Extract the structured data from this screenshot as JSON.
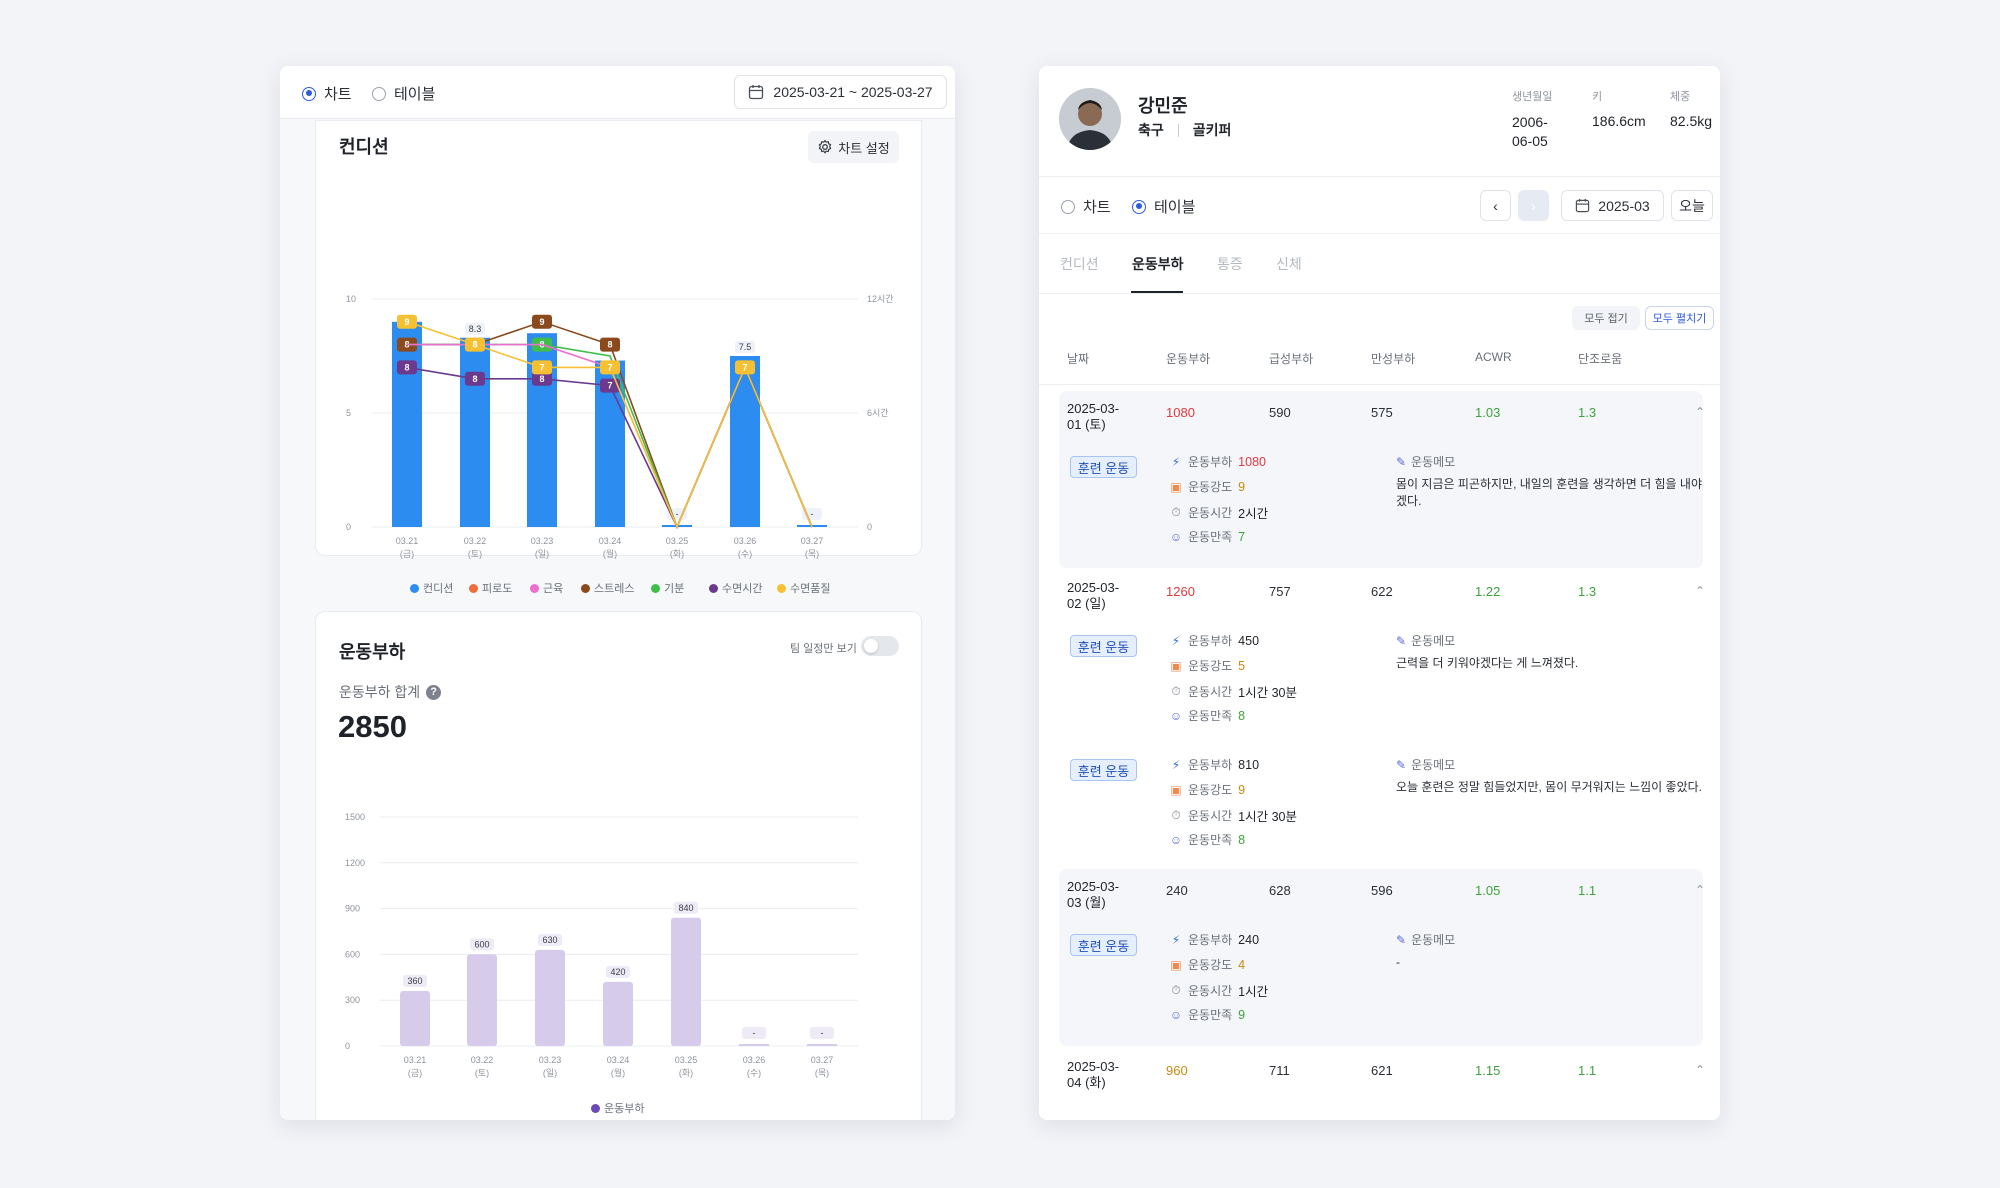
{
  "left": {
    "view_radio": {
      "chart": "차트",
      "table": "테이블"
    },
    "date_range": "2025-03-21 ~ 2025-03-27",
    "condition_card": {
      "title": "컨디션",
      "settings_label": "차트 설정",
      "legend": [
        {
          "name": "컨디션",
          "color": "#2d8cf0"
        },
        {
          "name": "피로도",
          "color": "#f26b3a"
        },
        {
          "name": "근육",
          "color": "#ec6fcf"
        },
        {
          "name": "스트레스",
          "color": "#8a4a1d"
        },
        {
          "name": "기분",
          "color": "#3fbf4a"
        },
        {
          "name": "수면시간",
          "color": "#6b3a8f"
        },
        {
          "name": "수면품질",
          "color": "#f5c133"
        }
      ]
    },
    "load_card": {
      "title": "운동부하",
      "team_toggle_label": "팀 일정만 보기",
      "total_label": "운동부하 합계",
      "total_value": "2850",
      "legend": [
        {
          "name": "운동부하",
          "color": "#6b48b8"
        }
      ]
    }
  },
  "chart_data": [
    {
      "type": "bar",
      "categories": [
        "03.21\n(금)",
        "03.22\n(토)",
        "03.23\n(일)",
        "03.24\n(월)",
        "03.25\n(화)",
        "03.26\n(수)",
        "03.27\n(목)"
      ],
      "ylim": [
        0,
        10
      ],
      "yticks": [
        "0",
        "5",
        "10"
      ],
      "y2ticks": [
        "0",
        "6시간",
        "12시간"
      ],
      "bar_series": {
        "name": "컨디션",
        "values": [
          9,
          8.3,
          8.5,
          7.3,
          0,
          7.5,
          0
        ],
        "labels": [
          "",
          "8.3",
          "",
          "",
          "-",
          "7.5",
          "-"
        ]
      },
      "line_series": [
        {
          "name": "스트레스",
          "values": [
            8,
            8,
            9,
            8,
            0,
            7,
            0
          ],
          "labels": [
            "8",
            "",
            "9",
            "8",
            "",
            "",
            ""
          ]
        },
        {
          "name": "기분",
          "values": [
            8,
            8,
            8,
            7.5,
            0,
            7,
            0
          ],
          "labels": [
            "",
            "",
            "8",
            "",
            "",
            "",
            ""
          ]
        },
        {
          "name": "근육",
          "values": [
            8,
            8,
            8,
            7,
            0,
            7,
            0
          ],
          "labels": [
            "",
            "",
            "",
            "",
            "",
            "",
            ""
          ]
        },
        {
          "name": "수면시간",
          "values": [
            7,
            6.5,
            6.5,
            6.2,
            0,
            7,
            0
          ],
          "labels": [
            "8",
            "8",
            "8",
            "7",
            "",
            "",
            ""
          ]
        },
        {
          "name": "수면품질",
          "values": [
            9,
            8,
            7,
            7,
            0,
            7,
            0
          ],
          "labels": [
            "9",
            "8",
            "7",
            "7",
            "",
            "7",
            ""
          ]
        }
      ]
    },
    {
      "type": "bar",
      "categories": [
        "03.21\n(금)",
        "03.22\n(토)",
        "03.23\n(일)",
        "03.24\n(월)",
        "03.25\n(화)",
        "03.26\n(수)",
        "03.27\n(목)"
      ],
      "ylim": [
        0,
        1500
      ],
      "yticks": [
        "0",
        "300",
        "600",
        "900",
        "1200",
        "1500"
      ],
      "series": [
        {
          "name": "운동부하",
          "values": [
            360,
            600,
            630,
            420,
            840,
            0,
            0
          ],
          "labels": [
            "360",
            "600",
            "630",
            "420",
            "840",
            "-",
            "-"
          ]
        }
      ]
    }
  ],
  "right": {
    "player": {
      "name": "강민준",
      "sport": "축구",
      "position": "골키퍼",
      "birth_label": "생년월일",
      "birth_value": "2006-06-05",
      "height_label": "키",
      "height_value": "186.6cm",
      "weight_label": "체중",
      "weight_value": "82.5kg"
    },
    "view_radio": {
      "chart": "차트",
      "table": "테이블"
    },
    "month": "2025-03",
    "today": "오늘",
    "tabs": [
      "컨디션",
      "운동부하",
      "통증",
      "신체"
    ],
    "collapse_all": "모두 접기",
    "expand_all": "모두 펼치기",
    "columns": [
      "날짜",
      "운동부하",
      "급성부하",
      "만성부하",
      "ACWR",
      "단조로움"
    ],
    "session_badge": "훈련 운동",
    "labels": {
      "load": "운동부하",
      "intensity": "운동강도",
      "time": "운동시간",
      "satisfaction": "운동만족",
      "memo": "운동메모"
    },
    "days": [
      {
        "date": "2025-03-01 (토)",
        "load": "1080",
        "acute": "590",
        "chronic": "575",
        "acwr": "1.03",
        "mono": "1.3",
        "sessions": [
          {
            "load": "1080",
            "intensity": "9",
            "time": "2시간",
            "satisfaction": "7",
            "memo": "몸이 지금은 피곤하지만, 내일의 훈련을 생각하면 더 힘을 내야겠다."
          }
        ]
      },
      {
        "date": "2025-03-02 (일)",
        "load": "1260",
        "acute": "757",
        "chronic": "622",
        "acwr": "1.22",
        "mono": "1.3",
        "sessions": [
          {
            "load": "450",
            "intensity": "5",
            "time": "1시간 30분",
            "satisfaction": "8",
            "memo": "근력을 더 키워야겠다는 게 느껴졌다."
          },
          {
            "load": "810",
            "intensity": "9",
            "time": "1시간 30분",
            "satisfaction": "8",
            "memo": "오늘 훈련은 정말 힘들었지만, 몸이 무거워지는 느낌이 좋았다."
          }
        ]
      },
      {
        "date": "2025-03-03 (월)",
        "load": "240",
        "acute": "628",
        "chronic": "596",
        "acwr": "1.05",
        "mono": "1.1",
        "sessions": [
          {
            "load": "240",
            "intensity": "4",
            "time": "1시간",
            "satisfaction": "9",
            "memo": "-"
          }
        ]
      },
      {
        "date": "2025-03-04 (화)",
        "load": "960",
        "acute": "711",
        "chronic": "621",
        "acwr": "1.15",
        "mono": "1.1",
        "sessions": []
      }
    ]
  }
}
